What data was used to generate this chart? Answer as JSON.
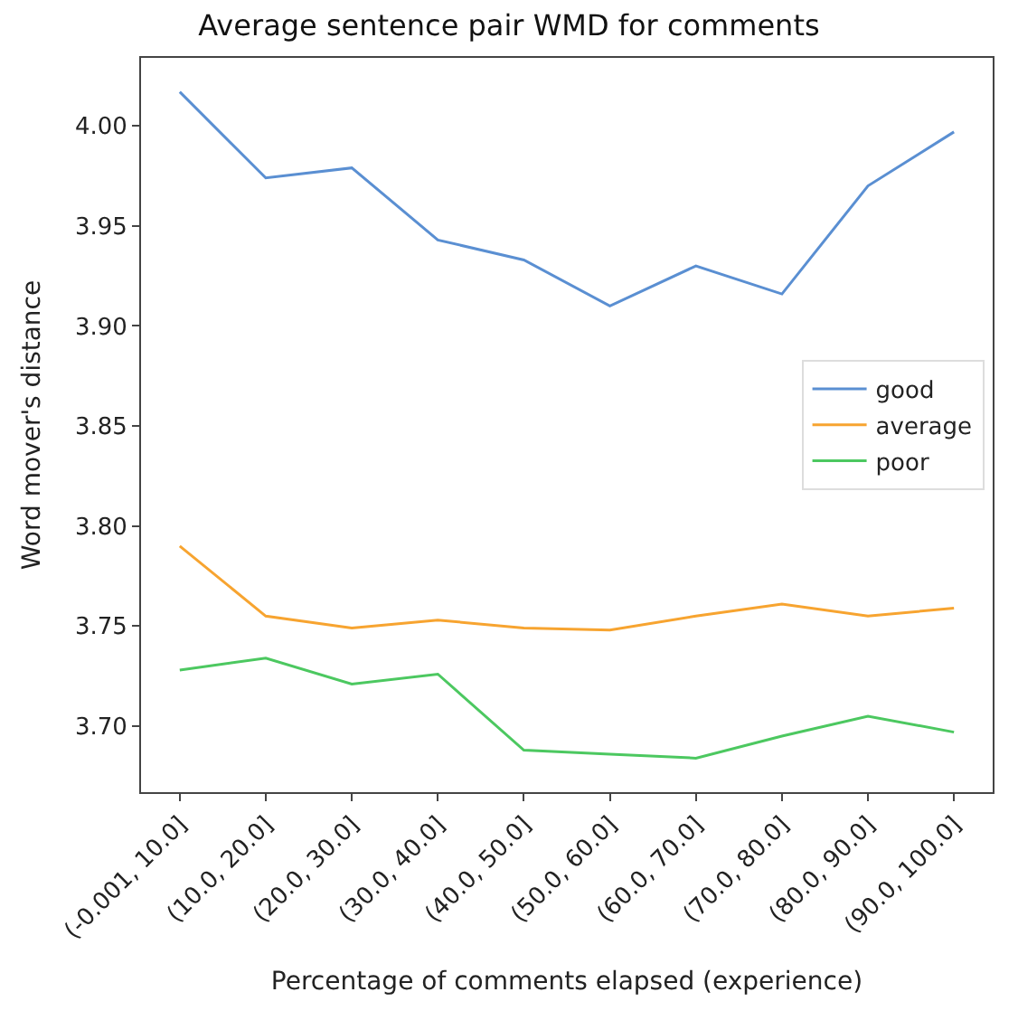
{
  "chart_data": {
    "type": "line",
    "title": "Average sentence pair WMD for comments",
    "xlabel": "Percentage of comments elapsed (experience)",
    "ylabel": "Word mover's distance",
    "categories": [
      "(-0.001, 10.0]",
      "(10.0, 20.0]",
      "(20.0, 30.0]",
      "(30.0, 40.0]",
      "(40.0, 50.0]",
      "(50.0, 60.0]",
      "(60.0, 70.0]",
      "(70.0, 80.0]",
      "(80.0, 90.0]",
      "(90.0, 100.0]"
    ],
    "series": [
      {
        "name": "good",
        "color": "#5a8fd2",
        "values": [
          4.017,
          3.974,
          3.979,
          3.943,
          3.933,
          3.91,
          3.93,
          3.916,
          3.97,
          3.997
        ]
      },
      {
        "name": "average",
        "color": "#f7a430",
        "values": [
          3.79,
          3.755,
          3.749,
          3.753,
          3.749,
          3.748,
          3.755,
          3.761,
          3.755,
          3.759
        ]
      },
      {
        "name": "poor",
        "color": "#4cc860",
        "values": [
          3.728,
          3.734,
          3.721,
          3.726,
          3.688,
          3.686,
          3.684,
          3.695,
          3.705,
          3.697
        ]
      }
    ],
    "ylim": [
      3.667,
      4.034
    ],
    "yticks": [
      {
        "value": 3.7,
        "label": "3.70"
      },
      {
        "value": 3.75,
        "label": "3.75"
      },
      {
        "value": 3.8,
        "label": "3.80"
      },
      {
        "value": 3.85,
        "label": "3.85"
      },
      {
        "value": 3.9,
        "label": "3.90"
      },
      {
        "value": 3.95,
        "label": "3.95"
      },
      {
        "value": 4.0,
        "label": "4.00"
      }
    ],
    "grid": false,
    "legend": "right",
    "marker": "none",
    "line_style": "solid"
  }
}
